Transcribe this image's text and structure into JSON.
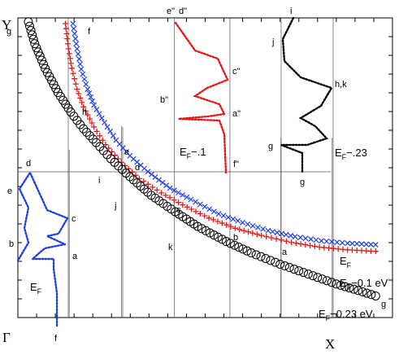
{
  "chart_data": {
    "type": "scatter",
    "title": "",
    "corner_labels": {
      "y": "Y",
      "gamma": "Γ",
      "x": "X"
    },
    "axes": {
      "x": {
        "range": [
          0,
          1
        ],
        "start_label": "Γ",
        "end_label": "X"
      },
      "y": {
        "range": [
          0,
          1
        ],
        "end_label": "Y"
      },
      "grid": false
    },
    "series": [
      {
        "name": "E_F",
        "label_main": "E",
        "label_sub": "F",
        "label_tail": "",
        "color": "#1f3fe0",
        "marker": "x",
        "points": [
          [
            0.147,
            0.981
          ],
          [
            0.158,
            0.897
          ],
          [
            0.169,
            0.829
          ],
          [
            0.186,
            0.762
          ],
          [
            0.203,
            0.709
          ],
          [
            0.231,
            0.651
          ],
          [
            0.262,
            0.592
          ],
          [
            0.299,
            0.54
          ],
          [
            0.347,
            0.487
          ],
          [
            0.406,
            0.432
          ],
          [
            0.462,
            0.394
          ],
          [
            0.536,
            0.346
          ],
          [
            0.6,
            0.317
          ],
          [
            0.668,
            0.29
          ],
          [
            0.74,
            0.27
          ],
          [
            0.81,
            0.256
          ],
          [
            0.88,
            0.248
          ],
          [
            0.955,
            0.243
          ]
        ]
      },
      {
        "name": "E_F-0.1 eV",
        "label_main": "E",
        "label_sub": "F",
        "label_tail": "−0.1 eV",
        "color": "#e11919",
        "marker": "plus",
        "points": [
          [
            0.127,
            0.981
          ],
          [
            0.135,
            0.897
          ],
          [
            0.144,
            0.832
          ],
          [
            0.158,
            0.762
          ],
          [
            0.175,
            0.703
          ],
          [
            0.203,
            0.636
          ],
          [
            0.234,
            0.577
          ],
          [
            0.276,
            0.518
          ],
          [
            0.324,
            0.464
          ],
          [
            0.383,
            0.416
          ],
          [
            0.44,
            0.376
          ],
          [
            0.51,
            0.332
          ],
          [
            0.58,
            0.298
          ],
          [
            0.65,
            0.274
          ],
          [
            0.73,
            0.251
          ],
          [
            0.805,
            0.235
          ],
          [
            0.88,
            0.226
          ],
          [
            0.955,
            0.221
          ]
        ]
      },
      {
        "name": "E_F-0.23 eV",
        "label_main": "E",
        "label_sub": "F",
        "label_tail": "−0.23 eV",
        "color": "#000000",
        "marker": "circle",
        "points": [
          [
            0.028,
            0.987
          ],
          [
            0.045,
            0.914
          ],
          [
            0.073,
            0.831
          ],
          [
            0.107,
            0.751
          ],
          [
            0.141,
            0.686
          ],
          [
            0.175,
            0.63
          ],
          [
            0.209,
            0.584
          ],
          [
            0.248,
            0.53
          ],
          [
            0.299,
            0.47
          ],
          [
            0.356,
            0.408
          ],
          [
            0.42,
            0.353
          ],
          [
            0.48,
            0.304
          ],
          [
            0.556,
            0.254
          ],
          [
            0.623,
            0.216
          ],
          [
            0.7,
            0.178
          ],
          [
            0.775,
            0.145
          ],
          [
            0.85,
            0.112
          ],
          [
            0.92,
            0.086
          ],
          [
            0.955,
            0.072
          ]
        ]
      }
    ],
    "annotations": {
      "ef_labels": [
        {
          "main": "E",
          "sub": "F",
          "tail": ""
        },
        {
          "main": "E",
          "sub": "F",
          "tail": "−.1"
        },
        {
          "main": "E",
          "sub": "F",
          "tail": "−.23"
        }
      ],
      "point_labels": [
        "a",
        "b",
        "c",
        "d",
        "e",
        "f",
        "g",
        "h",
        "i",
        "j",
        "k",
        "h,k",
        "a\"",
        "b\"",
        "c\"",
        "d\"",
        "e\"",
        "f\""
      ],
      "fermi_surface_insets": [
        {
          "color": "#1f3fe0",
          "label": "E_F"
        },
        {
          "color": "#e11919",
          "label": "E_F-.1"
        },
        {
          "color": "#000000",
          "label": "E_F-.23"
        }
      ]
    }
  }
}
